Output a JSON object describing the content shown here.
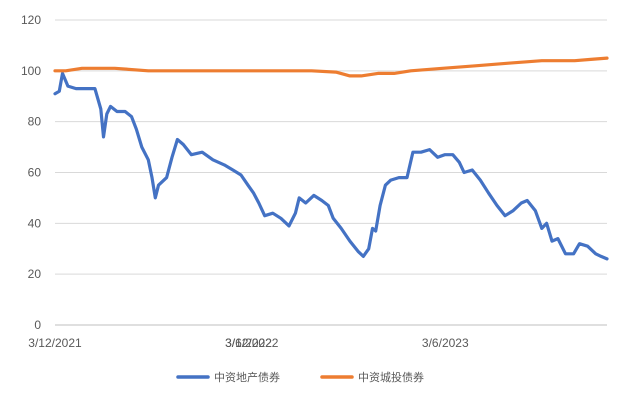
{
  "chart_data": {
    "type": "line",
    "title": "",
    "xlabel": "",
    "ylabel": "",
    "ylim": [
      0,
      120
    ],
    "y_ticks": [
      "0",
      "20",
      "40",
      "60",
      "80",
      "100",
      "120"
    ],
    "x_range": [
      "2021-03-12",
      "2023-12-31"
    ],
    "x_ticks": [
      {
        "date": "2021-03-12",
        "label": "3/12/2021"
      },
      {
        "date": "2022-03-06",
        "label": "3/6/2022"
      },
      {
        "date": "2022-03-12",
        "label": "3/12/2022"
      },
      {
        "date": "2023-03-06",
        "label": "3/6/2023"
      }
    ],
    "grid": "horizontal",
    "legend_position": "bottom",
    "series": [
      {
        "name": "中资地产债券",
        "color": "#4472c4",
        "points": [
          [
            "2021-03-12",
            91
          ],
          [
            "2021-03-20",
            92
          ],
          [
            "2021-03-26",
            99
          ],
          [
            "2021-04-05",
            94
          ],
          [
            "2021-04-20",
            93
          ],
          [
            "2021-05-10",
            93
          ],
          [
            "2021-05-25",
            93
          ],
          [
            "2021-06-05",
            85
          ],
          [
            "2021-06-10",
            74
          ],
          [
            "2021-06-16",
            83
          ],
          [
            "2021-06-23",
            86
          ],
          [
            "2021-07-05",
            84
          ],
          [
            "2021-07-20",
            84
          ],
          [
            "2021-08-01",
            82
          ],
          [
            "2021-08-10",
            77
          ],
          [
            "2021-08-20",
            70
          ],
          [
            "2021-09-01",
            65
          ],
          [
            "2021-09-08",
            58
          ],
          [
            "2021-09-14",
            50
          ],
          [
            "2021-09-20",
            55
          ],
          [
            "2021-10-05",
            58
          ],
          [
            "2021-10-15",
            66
          ],
          [
            "2021-10-25",
            73
          ],
          [
            "2021-11-05",
            71
          ],
          [
            "2021-11-20",
            67
          ],
          [
            "2021-12-10",
            68
          ],
          [
            "2021-12-30",
            65
          ],
          [
            "2022-01-20",
            63
          ],
          [
            "2022-02-05",
            61
          ],
          [
            "2022-02-20",
            59
          ],
          [
            "2022-03-05",
            55
          ],
          [
            "2022-03-15",
            52
          ],
          [
            "2022-03-25",
            48
          ],
          [
            "2022-04-05",
            43
          ],
          [
            "2022-04-20",
            44
          ],
          [
            "2022-05-05",
            42
          ],
          [
            "2022-05-20",
            39
          ],
          [
            "2022-06-01",
            44
          ],
          [
            "2022-06-08",
            50
          ],
          [
            "2022-06-20",
            48
          ],
          [
            "2022-07-05",
            51
          ],
          [
            "2022-07-20",
            49
          ],
          [
            "2022-08-01",
            47
          ],
          [
            "2022-08-10",
            42
          ],
          [
            "2022-08-25",
            38
          ],
          [
            "2022-09-10",
            33
          ],
          [
            "2022-09-25",
            29
          ],
          [
            "2022-10-05",
            27
          ],
          [
            "2022-10-15",
            30
          ],
          [
            "2022-10-22",
            38
          ],
          [
            "2022-10-28",
            37
          ],
          [
            "2022-11-05",
            47
          ],
          [
            "2022-11-15",
            55
          ],
          [
            "2022-11-25",
            57
          ],
          [
            "2022-12-10",
            58
          ],
          [
            "2022-12-25",
            58
          ],
          [
            "2023-01-05",
            68
          ],
          [
            "2023-01-20",
            68
          ],
          [
            "2023-02-05",
            69
          ],
          [
            "2023-02-20",
            66
          ],
          [
            "2023-03-05",
            67
          ],
          [
            "2023-03-20",
            67
          ],
          [
            "2023-04-01",
            64
          ],
          [
            "2023-04-10",
            60
          ],
          [
            "2023-04-25",
            61
          ],
          [
            "2023-05-10",
            57
          ],
          [
            "2023-05-25",
            52
          ],
          [
            "2023-06-10",
            47
          ],
          [
            "2023-06-25",
            43
          ],
          [
            "2023-07-10",
            45
          ],
          [
            "2023-07-25",
            48
          ],
          [
            "2023-08-05",
            49
          ],
          [
            "2023-08-20",
            45
          ],
          [
            "2023-09-01",
            38
          ],
          [
            "2023-09-10",
            40
          ],
          [
            "2023-09-20",
            33
          ],
          [
            "2023-10-01",
            34
          ],
          [
            "2023-10-15",
            28
          ],
          [
            "2023-10-30",
            28
          ],
          [
            "2023-11-10",
            32
          ],
          [
            "2023-11-25",
            31
          ],
          [
            "2023-12-10",
            28
          ],
          [
            "2023-12-20",
            27
          ],
          [
            "2023-12-31",
            26
          ]
        ]
      },
      {
        "name": "中资城投债券",
        "color": "#ed7d31",
        "points": [
          [
            "2021-03-12",
            100
          ],
          [
            "2021-04-01",
            100
          ],
          [
            "2021-05-01",
            101
          ],
          [
            "2021-07-01",
            101
          ],
          [
            "2021-09-01",
            100
          ],
          [
            "2021-11-01",
            100
          ],
          [
            "2022-01-01",
            100
          ],
          [
            "2022-03-01",
            100
          ],
          [
            "2022-05-01",
            100
          ],
          [
            "2022-07-01",
            100
          ],
          [
            "2022-08-15",
            99.5
          ],
          [
            "2022-09-10",
            98
          ],
          [
            "2022-10-01",
            98
          ],
          [
            "2022-11-01",
            99
          ],
          [
            "2022-12-01",
            99
          ],
          [
            "2023-01-01",
            100
          ],
          [
            "2023-03-01",
            101
          ],
          [
            "2023-05-01",
            102
          ],
          [
            "2023-07-01",
            103
          ],
          [
            "2023-09-01",
            104
          ],
          [
            "2023-11-01",
            104
          ],
          [
            "2023-12-01",
            104.5
          ],
          [
            "2023-12-31",
            105
          ]
        ]
      }
    ]
  }
}
